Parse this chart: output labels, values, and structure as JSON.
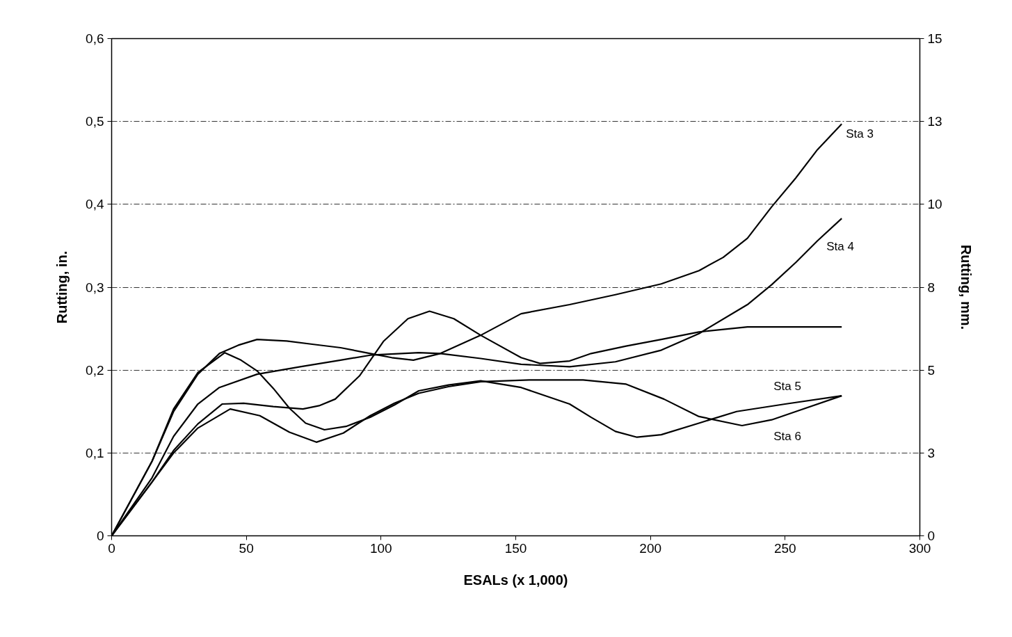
{
  "chart_data": {
    "type": "line",
    "xlabel": "ESALs (x 1,000)",
    "ylabel": "Rutting, in.",
    "y2label": "Rutting, mm.",
    "xlim": [
      0,
      300
    ],
    "xticks": [
      0,
      50,
      100,
      150,
      200,
      250,
      300
    ],
    "ylim": [
      0,
      0.6
    ],
    "yticks": [
      0,
      {
        "value": 0.1,
        "label": "0,1"
      },
      {
        "value": 0.2,
        "label": "0,2"
      },
      {
        "value": 0.3,
        "label": "0,3"
      },
      {
        "value": 0.4,
        "label": "0,4"
      },
      {
        "value": 0.5,
        "label": "0,5"
      },
      {
        "value": 0.6,
        "label": "0,6"
      }
    ],
    "y2lim": [
      0,
      15.24
    ],
    "y2ticks": [
      0,
      {
        "value": 2.54,
        "label": "3"
      },
      {
        "value": 5.08,
        "label": "5"
      },
      {
        "value": 7.62,
        "label": "8"
      },
      {
        "value": 10.16,
        "label": "10"
      },
      {
        "value": 12.7,
        "label": "13"
      },
      {
        "value": 15.24,
        "label": "15"
      }
    ],
    "grid": "y",
    "marker": "none",
    "line_style": "solid",
    "series": [
      {
        "name": "Sta 3",
        "color": "#000000",
        "x": [
          0,
          15,
          23,
          32,
          40,
          47,
          54,
          65,
          75,
          85,
          96,
          104,
          112,
          122,
          137,
          152,
          170,
          187,
          204,
          218,
          227,
          236,
          245,
          254,
          262,
          271
        ],
        "values": [
          0,
          0.09,
          0.15,
          0.195,
          0.22,
          0.23,
          0.237,
          0.235,
          0.231,
          0.227,
          0.22,
          0.215,
          0.212,
          0.22,
          0.242,
          0.268,
          0.279,
          0.291,
          0.304,
          0.32,
          0.336,
          0.359,
          0.397,
          0.432,
          0.466,
          0.497
        ]
      },
      {
        "name": "Sta  4",
        "color": "#000000",
        "x": [
          0,
          15,
          23,
          32,
          40,
          54,
          70,
          85,
          96,
          114,
          122,
          137,
          152,
          170,
          187,
          204,
          218,
          236,
          245,
          254,
          262,
          271
        ],
        "values": [
          0,
          0.07,
          0.12,
          0.159,
          0.179,
          0.195,
          0.204,
          0.212,
          0.218,
          0.221,
          0.22,
          0.214,
          0.207,
          0.204,
          0.21,
          0.224,
          0.244,
          0.279,
          0.303,
          0.33,
          0.356,
          0.383
        ]
      },
      {
        "color": "#000000",
        "x": [
          0,
          15,
          23,
          32,
          41,
          49,
          60,
          71,
          77,
          83,
          92,
          101,
          110,
          118,
          127,
          137,
          152,
          159,
          170,
          178,
          191,
          204,
          218,
          236,
          254,
          271
        ],
        "values": [
          0,
          0.065,
          0.103,
          0.135,
          0.159,
          0.16,
          0.156,
          0.153,
          0.157,
          0.165,
          0.193,
          0.235,
          0.262,
          0.271,
          0.262,
          0.242,
          0.215,
          0.208,
          0.211,
          0.22,
          0.229,
          0.237,
          0.246,
          0.252,
          0.252,
          0.252
        ]
      },
      {
        "name": "Sta 5",
        "color": "#000000",
        "x": [
          0,
          15,
          23,
          32,
          42,
          48,
          54,
          60,
          66,
          72,
          79,
          87,
          96,
          105,
          114,
          125,
          137,
          152,
          170,
          178,
          187,
          195,
          204,
          218,
          232,
          250,
          271
        ],
        "values": [
          0,
          0.09,
          0.153,
          0.197,
          0.221,
          0.212,
          0.199,
          0.178,
          0.154,
          0.136,
          0.128,
          0.132,
          0.143,
          0.158,
          0.175,
          0.182,
          0.187,
          0.179,
          0.159,
          0.143,
          0.126,
          0.119,
          0.122,
          0.136,
          0.15,
          0.159,
          0.169
        ]
      },
      {
        "name": "Sta 6",
        "color": "#000000",
        "x": [
          0,
          15,
          23,
          32,
          44,
          55,
          66,
          76,
          86,
          96,
          105,
          114,
          125,
          137,
          155,
          175,
          191,
          205,
          218,
          234,
          245,
          254,
          271
        ],
        "values": [
          0,
          0.065,
          0.1,
          0.13,
          0.153,
          0.145,
          0.125,
          0.113,
          0.124,
          0.145,
          0.16,
          0.172,
          0.18,
          0.186,
          0.188,
          0.188,
          0.183,
          0.165,
          0.144,
          0.133,
          0.14,
          0.15,
          0.169
        ]
      }
    ]
  }
}
